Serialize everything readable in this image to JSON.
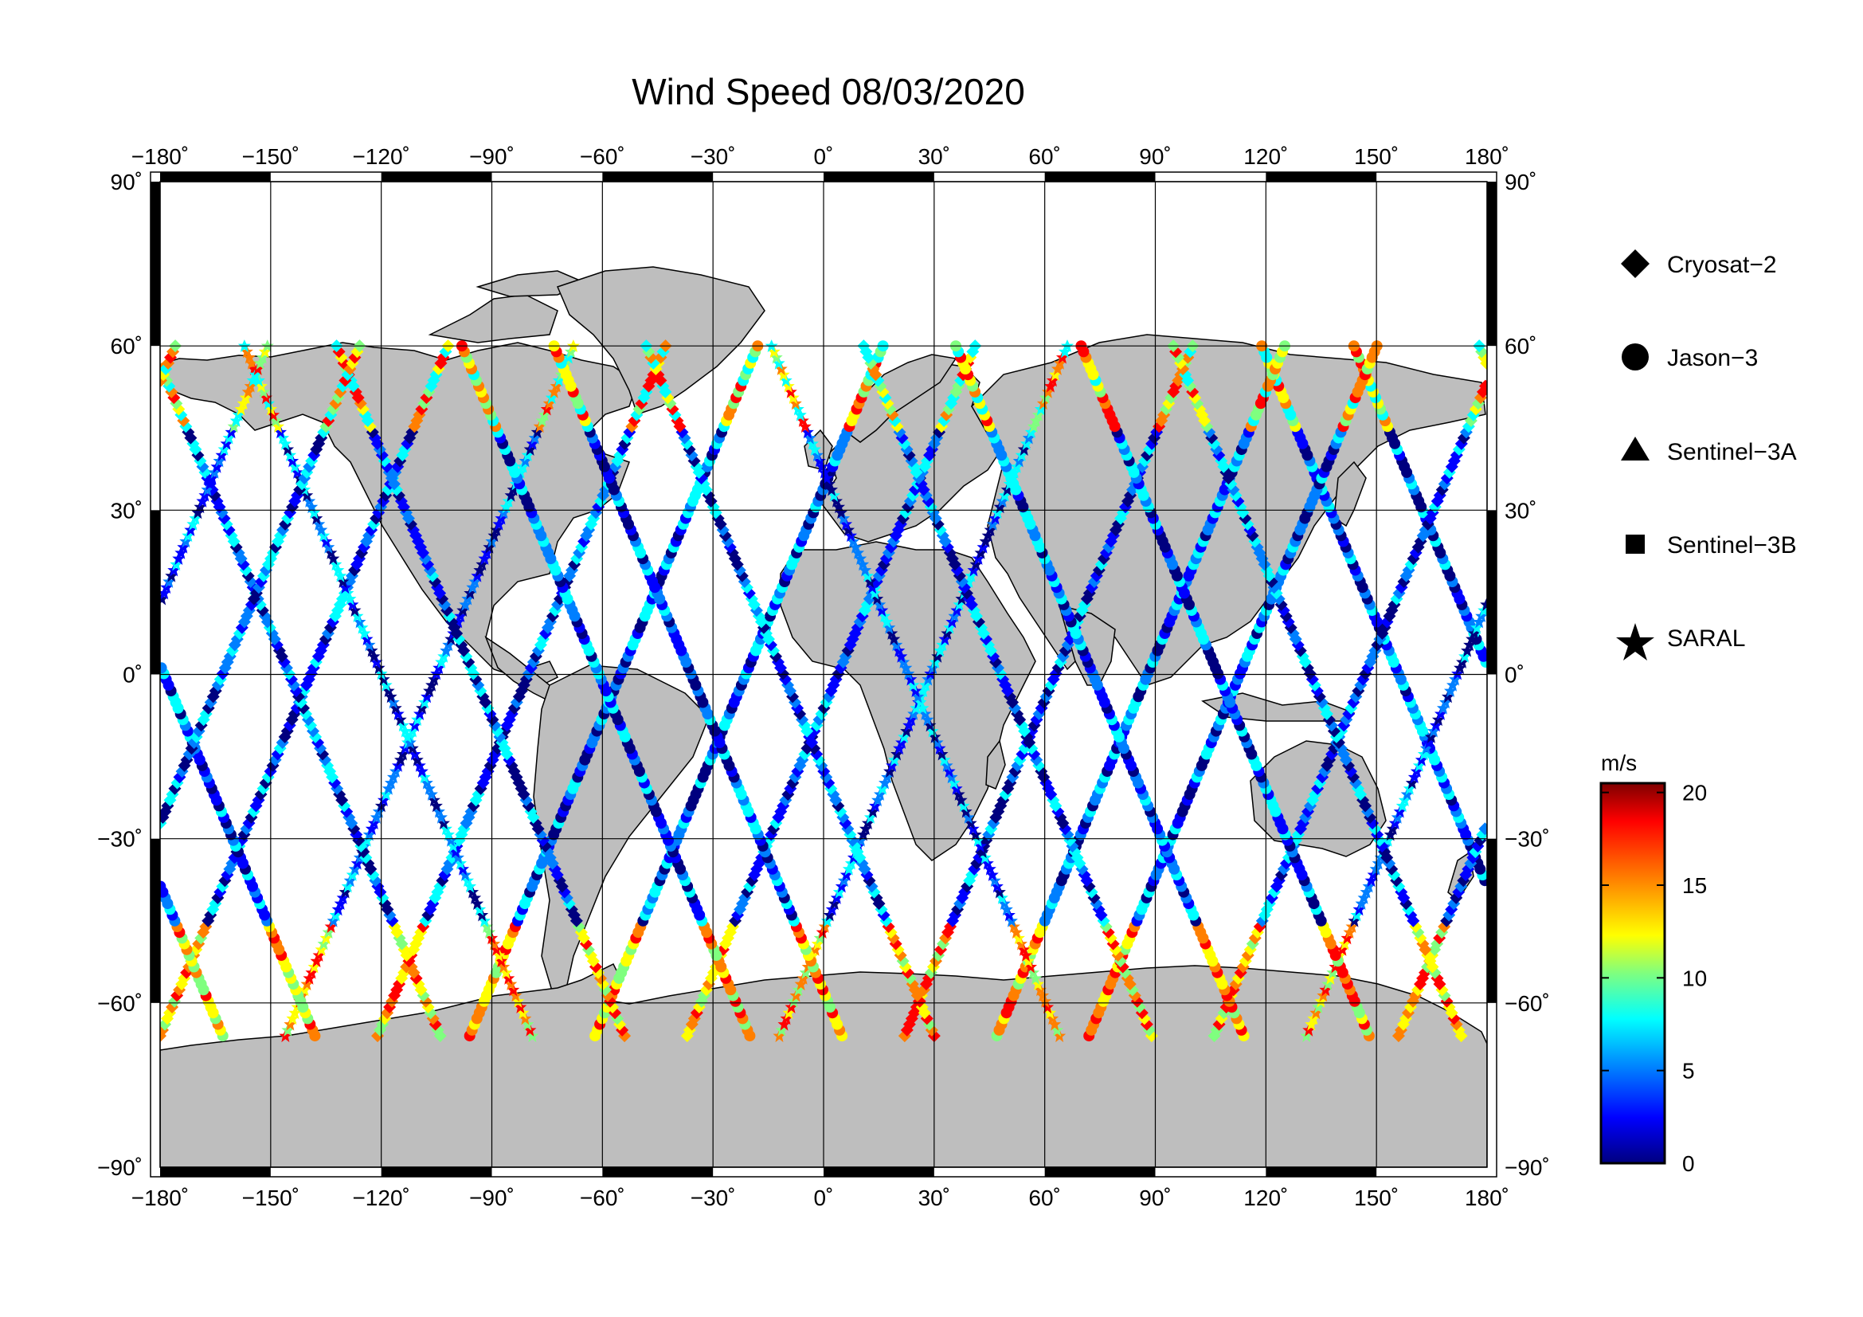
{
  "title": "Wind Speed 08/03/2020",
  "map": {
    "lon_ticks": [
      -180,
      -150,
      -120,
      -90,
      -60,
      -30,
      0,
      30,
      60,
      90,
      120,
      150,
      180
    ],
    "lat_ticks": [
      90,
      60,
      30,
      0,
      -30,
      -60,
      -90
    ],
    "lon_labels": [
      "−180˚",
      "−150˚",
      "−120˚",
      "−90˚",
      "−60˚",
      "−30˚",
      "0˚",
      "30˚",
      "60˚",
      "90˚",
      "120˚",
      "150˚",
      "180˚"
    ],
    "lat_labels": [
      "90˚",
      "60˚",
      "30˚",
      "0˚",
      "−30˚",
      "−60˚",
      "−90˚"
    ],
    "land_color": "#bebebe",
    "ocean_color": "#ffffff"
  },
  "legend": {
    "items": [
      {
        "label": "Cryosat−2",
        "symbol": "diamond"
      },
      {
        "label": "Jason−3",
        "symbol": "circle"
      },
      {
        "label": "Sentinel−3A",
        "symbol": "triangle"
      },
      {
        "label": "Sentinel−3B",
        "symbol": "square"
      },
      {
        "label": "SARAL",
        "symbol": "star"
      }
    ]
  },
  "colorbar": {
    "unit": "m/s",
    "ticks": [
      "20",
      "15",
      "10",
      "5",
      "0"
    ],
    "min": 0,
    "max": 20.5,
    "colors": [
      "#7f0000",
      "#ff0000",
      "#ff7f00",
      "#ffff00",
      "#7fff7f",
      "#00ffff",
      "#007fff",
      "#0000ff",
      "#00007f"
    ]
  }
}
